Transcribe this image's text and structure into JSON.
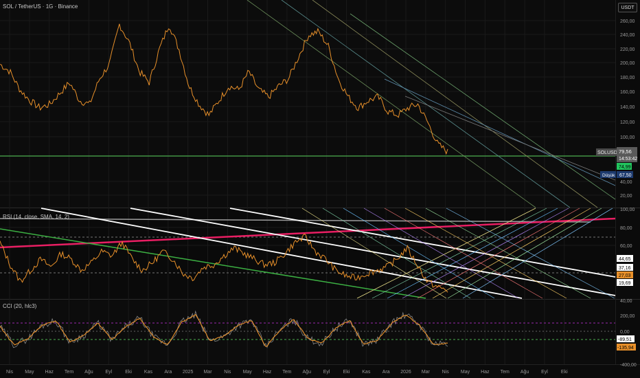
{
  "title": "SOL / TetherUS · 1G · Binance",
  "currency_button": "USDT",
  "colors": {
    "background": "#0b0b0b",
    "price": "#e8902a",
    "green_line": "#4caf50",
    "rsi_pink": "#e91e63",
    "rsi_green": "#3cb043",
    "white": "#ffffff",
    "cci_avg": "#e8902a",
    "cci_raw": "#888888",
    "dash_purple": "#9c27b0",
    "dash_green": "#4caf50"
  },
  "xaxis": {
    "labels": [
      "Nis",
      "May",
      "Haz",
      "Tem",
      "Ağu",
      "Eyl",
      "Eki",
      "Kas",
      "Ara",
      "2025",
      "Mar",
      "Nis",
      "May",
      "Haz",
      "Tem",
      "Ağu",
      "Eyl",
      "Eki",
      "Kas",
      "Ara",
      "2026",
      "Mar",
      "Nis",
      "May",
      "Haz",
      "Tem",
      "Ağu",
      "Eyl",
      "Eki"
    ]
  },
  "main_pane": {
    "ticks": [
      "260,00",
      "240,00",
      "220,00",
      "200,00",
      "180,00",
      "160,00",
      "140,00",
      "120,00",
      "100,00",
      "40,00",
      "20,00"
    ],
    "symbol_tag": "SOLUSDT",
    "last_price": "79,56",
    "countdown": "14:53:42",
    "green_tag": "74,99",
    "low_label": "Düşük",
    "low_value": "67,50"
  },
  "rsi_pane": {
    "label": "RSI (14, close, SMA, 14, 2)",
    "ticks": [
      "100,00",
      "80,00",
      "60,00",
      "40,00"
    ],
    "tag_1": "44,65",
    "tag_2": "37,16",
    "tag_3": "27,03",
    "tag_4": "19,69"
  },
  "cci_pane": {
    "label": "CCI (20, hlc3)",
    "ticks": [
      "200,00",
      "0,00",
      "-400,00"
    ],
    "tag_1": "-89,51",
    "tag_2": "-135,94"
  },
  "chart_data": {
    "type": "line",
    "series": [
      {
        "name": "SOLUSDT",
        "values": [
          200,
          190,
          165,
          150,
          140,
          145,
          160,
          175,
          150,
          145,
          180,
          200,
          255,
          230,
          190,
          175,
          220,
          255,
          220,
          170,
          145,
          130,
          150,
          170,
          165,
          190,
          165,
          155,
          170,
          180,
          210,
          240,
          245,
          225,
          180,
          155,
          140,
          150,
          155,
          135,
          130,
          140,
          145,
          120,
          90,
          79.56
        ]
      },
      {
        "name": "RSI",
        "values": [
          70,
          50,
          35,
          45,
          55,
          48,
          60,
          55,
          45,
          52,
          62,
          58,
          70,
          55,
          45,
          52,
          62,
          55,
          42,
          38,
          48,
          50,
          58,
          65,
          60,
          55,
          50,
          52,
          60,
          70,
          75,
          62,
          55,
          45,
          40,
          38,
          42,
          45,
          48,
          55,
          65,
          50,
          35,
          30,
          27.03
        ]
      },
      {
        "name": "CCI",
        "values": [
          50,
          -100,
          -50,
          60,
          100,
          -80,
          -20,
          80,
          -60,
          50,
          120,
          -40,
          -100,
          90,
          150,
          -70,
          -30,
          60,
          100,
          -120,
          20,
          110,
          -50,
          -90,
          40,
          100,
          -100,
          -60,
          80,
          150,
          60,
          -100,
          -89.51
        ]
      }
    ]
  }
}
